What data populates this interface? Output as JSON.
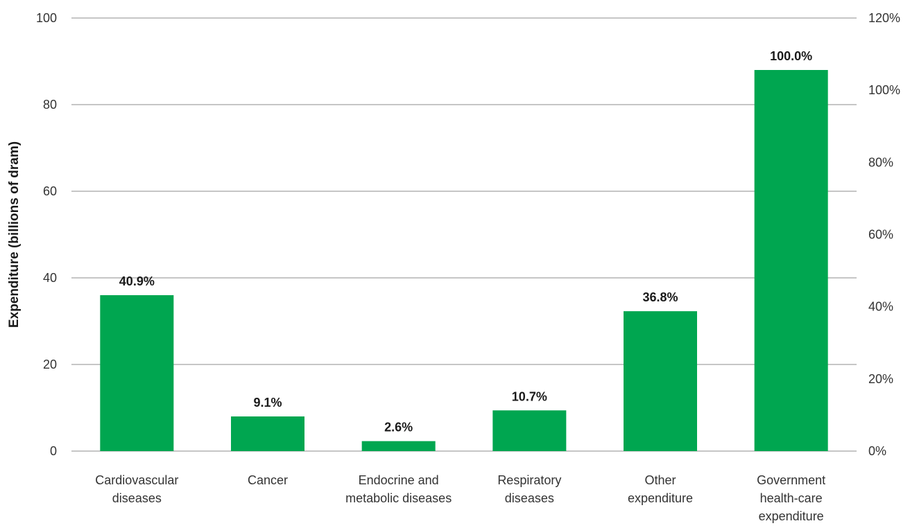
{
  "chart_data": {
    "type": "bar",
    "ylabel": "Expenditure (billions of dram)",
    "ylim": [
      0,
      100
    ],
    "y_ticks": [
      "0",
      "20",
      "40",
      "60",
      "80",
      "100"
    ],
    "y2lim": [
      0,
      120
    ],
    "y2_ticks": [
      "0%",
      "20%",
      "40%",
      "60%",
      "80%",
      "100%",
      "120%"
    ],
    "grid": true,
    "bar_color": "#00a650",
    "categories": [
      [
        "Cardiovascular",
        "diseases"
      ],
      [
        "Cancer"
      ],
      [
        "Endocrine and",
        "metabolic diseases"
      ],
      [
        "Respiratory",
        "diseases"
      ],
      [
        "Other",
        "expenditure"
      ],
      [
        "Government",
        "health-care",
        "expenditure"
      ]
    ],
    "values": [
      36,
      8,
      2.3,
      9.4,
      32.3,
      88
    ],
    "data_labels": [
      "40.9%",
      "9.1%",
      "2.6%",
      "10.7%",
      "36.8%",
      "100.0%"
    ]
  }
}
